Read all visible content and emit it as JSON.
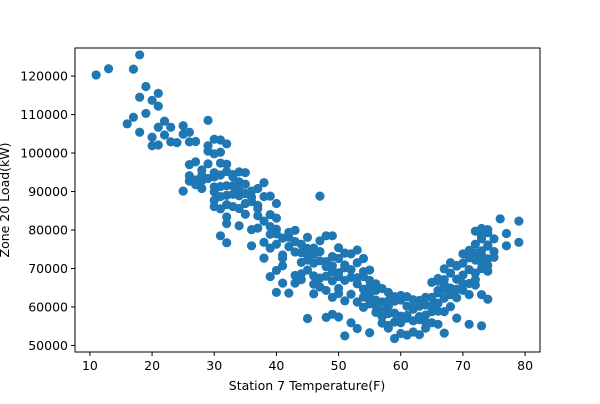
{
  "chart_data": {
    "type": "scatter",
    "title": "",
    "xlabel": "Station 7 Temperature(F)",
    "ylabel": "Zone 20 Load(kW)",
    "xlim": [
      7.6,
      82.4
    ],
    "ylim": [
      48300,
      127300
    ],
    "xticks": [
      10,
      20,
      30,
      40,
      50,
      60,
      70,
      80
    ],
    "yticks": [
      50000,
      60000,
      70000,
      80000,
      90000,
      100000,
      110000,
      120000
    ],
    "grid": false,
    "legend": "none",
    "marker_color": "#1f77b4",
    "series": [
      {
        "points": [
          [
            11,
            120300
          ],
          [
            13,
            121900
          ],
          [
            17,
            121800
          ],
          [
            18,
            125500
          ],
          [
            19,
            117300
          ],
          [
            18,
            114500
          ],
          [
            16,
            107600
          ],
          [
            17,
            109300
          ],
          [
            18,
            105400
          ],
          [
            19,
            110300
          ],
          [
            20,
            113700
          ],
          [
            21,
            115500
          ],
          [
            21,
            112200
          ],
          [
            20,
            104100
          ],
          [
            20,
            101900
          ],
          [
            21,
            106700
          ],
          [
            22,
            108300
          ],
          [
            22,
            104700
          ],
          [
            21,
            102100
          ],
          [
            23,
            102900
          ],
          [
            23,
            106700
          ],
          [
            24,
            102700
          ],
          [
            25,
            107100
          ],
          [
            25,
            104900
          ],
          [
            25,
            90100
          ],
          [
            26,
            105400
          ],
          [
            26,
            102900
          ],
          [
            27,
            103000
          ],
          [
            26,
            97000
          ],
          [
            26,
            94100
          ],
          [
            27,
            97700
          ],
          [
            28,
            94200
          ],
          [
            28,
            92800
          ],
          [
            27,
            93000
          ],
          [
            28,
            95600
          ],
          [
            29,
            97200
          ],
          [
            29,
            108500
          ],
          [
            29,
            100500
          ],
          [
            29,
            101900
          ],
          [
            30,
            103600
          ],
          [
            30,
            99800
          ],
          [
            30,
            93800
          ],
          [
            30,
            91200
          ],
          [
            31,
            97400
          ],
          [
            31,
            100200
          ],
          [
            31,
            103400
          ],
          [
            32,
            102400
          ],
          [
            31,
            94300
          ],
          [
            32,
            97100
          ],
          [
            30,
            89900
          ],
          [
            30,
            87700
          ],
          [
            30,
            86100
          ],
          [
            31,
            88700
          ],
          [
            31,
            85500
          ],
          [
            32,
            89000
          ],
          [
            32,
            91500
          ],
          [
            32,
            95200
          ],
          [
            33,
            94400
          ],
          [
            33,
            91500
          ],
          [
            33,
            89300
          ],
          [
            32,
            83400
          ],
          [
            32,
            86600
          ],
          [
            33,
            86100
          ],
          [
            32,
            81700
          ],
          [
            34,
            88900
          ],
          [
            34,
            85600
          ],
          [
            34,
            81100
          ],
          [
            34,
            92500
          ],
          [
            34,
            95100
          ],
          [
            35,
            94900
          ],
          [
            35,
            89500
          ],
          [
            35,
            86900
          ],
          [
            35,
            84100
          ],
          [
            36,
            90100
          ],
          [
            36,
            87400
          ],
          [
            36,
            80100
          ],
          [
            37,
            86400
          ],
          [
            37,
            83700
          ],
          [
            37,
            90800
          ],
          [
            38,
            92300
          ],
          [
            38,
            88700
          ],
          [
            39,
            88800
          ],
          [
            39,
            84000
          ],
          [
            40,
            86900
          ],
          [
            40,
            83100
          ],
          [
            37,
            80500
          ],
          [
            38,
            76800
          ],
          [
            39,
            75300
          ],
          [
            38,
            72700
          ],
          [
            36,
            75900
          ],
          [
            39,
            78900
          ],
          [
            40,
            80200
          ],
          [
            40,
            76300
          ],
          [
            41,
            73500
          ],
          [
            41,
            70700
          ],
          [
            42,
            75700
          ],
          [
            42,
            78100
          ],
          [
            43,
            79900
          ],
          [
            43,
            74300
          ],
          [
            44,
            76300
          ],
          [
            44,
            71600
          ],
          [
            45,
            78100
          ],
          [
            45,
            75200
          ],
          [
            45,
            72200
          ],
          [
            46,
            75300
          ],
          [
            46,
            73700
          ],
          [
            47,
            77200
          ],
          [
            47,
            74400
          ],
          [
            48,
            78500
          ],
          [
            48,
            71800
          ],
          [
            49,
            78500
          ],
          [
            49,
            73100
          ],
          [
            49,
            70700
          ],
          [
            50,
            75400
          ],
          [
            50,
            72600
          ],
          [
            51,
            74000
          ],
          [
            51,
            70200
          ],
          [
            52,
            73800
          ],
          [
            53,
            74800
          ],
          [
            53,
            71500
          ],
          [
            54,
            72600
          ],
          [
            54,
            69200
          ],
          [
            55,
            66900
          ],
          [
            55,
            63400
          ],
          [
            56,
            65000
          ],
          [
            56,
            61800
          ],
          [
            57,
            64800
          ],
          [
            57,
            61300
          ],
          [
            58,
            63800
          ],
          [
            58,
            60200
          ],
          [
            59,
            62700
          ],
          [
            59,
            58400
          ],
          [
            60,
            61800
          ],
          [
            60,
            57600
          ],
          [
            61,
            60200
          ],
          [
            61,
            57100
          ],
          [
            62,
            59800
          ],
          [
            62,
            56400
          ],
          [
            63,
            60200
          ],
          [
            63,
            56700
          ],
          [
            64,
            60500
          ],
          [
            64,
            57900
          ],
          [
            65,
            62500
          ],
          [
            65,
            58800
          ],
          [
            66,
            64300
          ],
          [
            66,
            61000
          ],
          [
            66,
            67400
          ],
          [
            67,
            65800
          ],
          [
            67,
            62300
          ],
          [
            67,
            69900
          ],
          [
            68,
            68800
          ],
          [
            68,
            64900
          ],
          [
            69,
            70600
          ],
          [
            69,
            67200
          ],
          [
            70,
            71400
          ],
          [
            70,
            68300
          ],
          [
            71,
            72800
          ],
          [
            71,
            69700
          ],
          [
            72,
            76300
          ],
          [
            72,
            72200
          ],
          [
            72,
            68800
          ],
          [
            73,
            77700
          ],
          [
            73,
            74600
          ],
          [
            73,
            71400
          ],
          [
            73,
            80400
          ],
          [
            74,
            79300
          ],
          [
            74,
            75800
          ],
          [
            74,
            72500
          ],
          [
            74,
            69300
          ],
          [
            75,
            77700
          ],
          [
            75,
            74400
          ],
          [
            76,
            82900
          ],
          [
            77,
            79100
          ],
          [
            77,
            75900
          ],
          [
            79,
            82300
          ],
          [
            79,
            76800
          ],
          [
            72,
            65700
          ],
          [
            73,
            63200
          ],
          [
            74,
            62000
          ],
          [
            73,
            55100
          ],
          [
            71,
            55500
          ],
          [
            69,
            57100
          ],
          [
            67,
            53200
          ],
          [
            66,
            55500
          ],
          [
            64,
            54500
          ],
          [
            63,
            52800
          ],
          [
            61,
            52700
          ],
          [
            59,
            51800
          ],
          [
            58,
            54500
          ],
          [
            57,
            55800
          ],
          [
            55,
            53300
          ],
          [
            53,
            54400
          ],
          [
            52,
            55900
          ],
          [
            51,
            52500
          ],
          [
            50,
            57400
          ],
          [
            49,
            58100
          ],
          [
            48,
            57300
          ],
          [
            45,
            57000
          ],
          [
            46,
            63400
          ],
          [
            47,
            65200
          ],
          [
            48,
            64300
          ],
          [
            49,
            62500
          ],
          [
            50,
            63500
          ],
          [
            51,
            61600
          ],
          [
            52,
            63300
          ],
          [
            53,
            61300
          ],
          [
            54,
            59900
          ],
          [
            55,
            60800
          ],
          [
            56,
            58600
          ],
          [
            57,
            57500
          ],
          [
            58,
            55200
          ],
          [
            59,
            56100
          ],
          [
            60,
            55900
          ],
          [
            61,
            57800
          ],
          [
            62,
            59400
          ],
          [
            63,
            57500
          ],
          [
            64,
            56000
          ],
          [
            65,
            55900
          ],
          [
            60,
            53100
          ],
          [
            62,
            53500
          ],
          [
            44,
            68600
          ],
          [
            43,
            66200
          ],
          [
            42,
            63600
          ],
          [
            41,
            66200
          ],
          [
            40,
            63800
          ],
          [
            40,
            69500
          ],
          [
            39,
            67900
          ],
          [
            41,
            72700
          ],
          [
            43,
            68200
          ],
          [
            44,
            67100
          ],
          [
            45,
            69600
          ],
          [
            46,
            68100
          ],
          [
            46,
            65900
          ],
          [
            47,
            67500
          ],
          [
            48,
            68000
          ],
          [
            49,
            66800
          ],
          [
            50,
            67900
          ],
          [
            50,
            64800
          ],
          [
            51,
            66900
          ],
          [
            52,
            67700
          ],
          [
            53,
            66000
          ],
          [
            54,
            64600
          ],
          [
            55,
            65300
          ],
          [
            56,
            66000
          ],
          [
            57,
            61200
          ],
          [
            58,
            61600
          ],
          [
            31,
            78500
          ],
          [
            32,
            76700
          ],
          [
            47,
            88800
          ],
          [
            66,
            66700
          ],
          [
            67,
            67100
          ],
          [
            68,
            71500
          ],
          [
            69,
            70800
          ],
          [
            70,
            73800
          ],
          [
            71,
            74700
          ],
          [
            72,
            74000
          ],
          [
            73,
            73400
          ],
          [
            74,
            76100
          ],
          [
            75,
            72900
          ],
          [
            72,
            79700
          ],
          [
            73,
            78300
          ],
          [
            74,
            80100
          ],
          [
            71,
            66100
          ],
          [
            70,
            64300
          ],
          [
            69,
            62400
          ],
          [
            68,
            60100
          ],
          [
            67,
            58800
          ],
          [
            66,
            58900
          ],
          [
            65,
            60400
          ],
          [
            64,
            62500
          ],
          [
            63,
            61700
          ],
          [
            62,
            61900
          ],
          [
            61,
            62700
          ],
          [
            60,
            63000
          ],
          [
            59,
            61500
          ],
          [
            58,
            58300
          ],
          [
            57,
            58900
          ],
          [
            56,
            60300
          ],
          [
            55,
            61700
          ],
          [
            54,
            62600
          ],
          [
            26,
            92700
          ],
          [
            27,
            91800
          ],
          [
            28,
            90800
          ],
          [
            29,
            93400
          ],
          [
            30,
            94900
          ],
          [
            31,
            91300
          ],
          [
            33,
            93800
          ],
          [
            34,
            90300
          ],
          [
            35,
            91900
          ],
          [
            36,
            88500
          ],
          [
            37,
            85600
          ],
          [
            38,
            82300
          ],
          [
            39,
            80900
          ],
          [
            40,
            79000
          ],
          [
            41,
            77900
          ],
          [
            42,
            79400
          ],
          [
            43,
            77000
          ],
          [
            44,
            74100
          ],
          [
            45,
            73500
          ],
          [
            46,
            71400
          ],
          [
            47,
            72000
          ],
          [
            48,
            70500
          ],
          [
            49,
            69200
          ],
          [
            50,
            68900
          ],
          [
            51,
            70900
          ],
          [
            52,
            69700
          ],
          [
            53,
            67600
          ],
          [
            54,
            67900
          ],
          [
            55,
            69600
          ],
          [
            56,
            64300
          ],
          [
            65,
            66400
          ],
          [
            66,
            63700
          ],
          [
            67,
            64600
          ],
          [
            68,
            63200
          ],
          [
            69,
            64600
          ],
          [
            70,
            66000
          ],
          [
            71,
            63200
          ],
          [
            72,
            67100
          ],
          [
            73,
            70000
          ],
          [
            74,
            70800
          ]
        ]
      }
    ]
  }
}
